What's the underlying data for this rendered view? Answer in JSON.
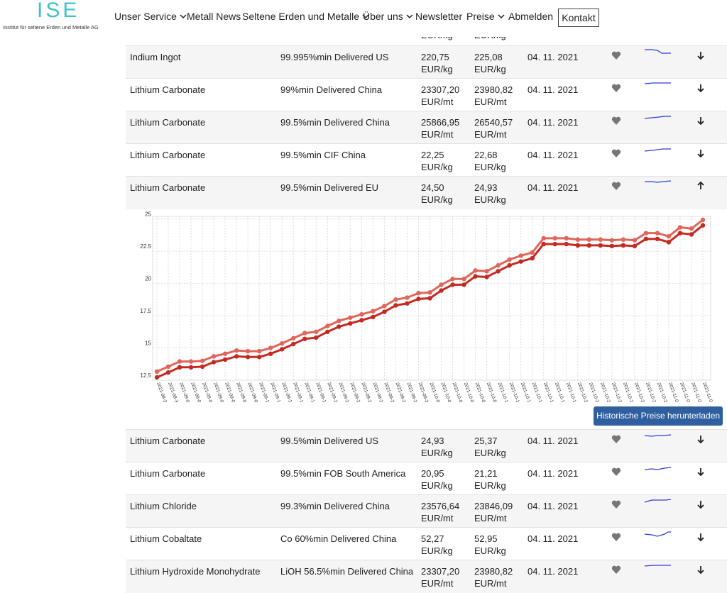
{
  "header": {
    "logo": "ISE",
    "logo_subtitle": "Institut für seltene Erden und Metalle AG",
    "nav": [
      "Unser Service",
      "Metall News",
      "Seltene Erden und Metalle",
      "Über uns",
      "Newsletter",
      "Preise",
      "Abmelden"
    ],
    "nav_dropdown": [
      true,
      false,
      true,
      true,
      false,
      true,
      false
    ],
    "contact": "Kontakt"
  },
  "partial_row": {
    "min_unit": "EUR/kg",
    "max_unit": "EUR/kg"
  },
  "table": {
    "rows_before": [
      {
        "product": "Indium Ingot",
        "spec": "99.995%min Delivered US",
        "min": "220,75",
        "min_unit": "EUR/kg",
        "max": "225,08",
        "max_unit": "EUR/kg",
        "date": "04. 11. 2021"
      },
      {
        "product": "Lithium Carbonate",
        "spec": "99%min Delivered China",
        "min": "23307,20",
        "min_unit": "EUR/mt",
        "max": "23980,82",
        "max_unit": "EUR/mt",
        "date": "04. 11. 2021"
      },
      {
        "product": "Lithium Carbonate",
        "spec": "99.5%min Delivered China",
        "min": "25866,95",
        "min_unit": "EUR/mt",
        "max": "26540,57",
        "max_unit": "EUR/mt",
        "date": "04. 11. 2021"
      },
      {
        "product": "Lithium Carbonate",
        "spec": "99.5%min CIF China",
        "min": "22,25",
        "min_unit": "EUR/kg",
        "max": "22,68",
        "max_unit": "EUR/kg",
        "date": "04. 11. 2021"
      },
      {
        "product": "Lithium Carbonate",
        "spec": "99.5%min Delivered EU",
        "min": "24,50",
        "min_unit": "EUR/kg",
        "max": "24,93",
        "max_unit": "EUR/kg",
        "date": "04. 11. 2021"
      }
    ],
    "rows_after": [
      {
        "product": "Lithium Carbonate",
        "spec": "99.5%min Delivered US",
        "min": "24,93",
        "min_unit": "EUR/kg",
        "max": "25,37",
        "max_unit": "EUR/kg",
        "date": "04. 11. 2021"
      },
      {
        "product": "Lithium Carbonate",
        "spec": "99.5%min FOB South America",
        "min": "20,95",
        "min_unit": "EUR/kg",
        "max": "21,21",
        "max_unit": "EUR/kg",
        "date": "04. 11. 2021"
      },
      {
        "product": "Lithium Chloride",
        "spec": "99.3%min Delivered China",
        "min": "23576,64",
        "min_unit": "EUR/mt",
        "max": "23846,09",
        "max_unit": "EUR/mt",
        "date": "04. 11. 2021"
      },
      {
        "product": "Lithium Cobaltate",
        "spec": "Co 60%min Delivered China",
        "min": "52,27",
        "min_unit": "EUR/kg",
        "max": "52,95",
        "max_unit": "EUR/kg",
        "date": "04. 11. 2021"
      },
      {
        "product": "Lithium Hydroxide Monohydrate",
        "spec": "LiOH 56.5%min Delivered China",
        "min": "23307,20",
        "min_unit": "EUR/mt",
        "max": "23980,82",
        "max_unit": "EUR/mt",
        "date": "04. 11. 2021"
      }
    ]
  },
  "download_button": "Historische Preise herunterladen",
  "chart_data": {
    "type": "line",
    "x": [
      "2021-08-30",
      "2021-08-31",
      "2021-09-01",
      "2021-09-02",
      "2021-09-03",
      "2021-09-06",
      "2021-09-07",
      "2021-09-08",
      "2021-09-09",
      "2021-09-10",
      "2021-09-13",
      "2021-09-14",
      "2021-09-15",
      "2021-09-16",
      "2021-09-17",
      "2021-09-20",
      "2021-09-21",
      "2021-09-22",
      "2021-09-23",
      "2021-09-24",
      "2021-09-27",
      "2021-09-28",
      "2021-09-29",
      "2021-09-30",
      "2021-10-01",
      "2021-10-04",
      "2021-10-05",
      "2021-10-06",
      "2021-10-07",
      "2021-10-08",
      "2021-10-11",
      "2021-10-12",
      "2021-10-13",
      "2021-10-14",
      "2021-10-15",
      "2021-10-18",
      "2021-10-19",
      "2021-10-20",
      "2021-10-21",
      "2021-10-22",
      "2021-10-25",
      "2021-10-26",
      "2021-10-27",
      "2021-10-28",
      "2021-10-29",
      "2021-11-01",
      "2021-11-02",
      "2021-11-03",
      "2021-11-04"
    ],
    "series": [
      {
        "color": "#e0655a",
        "values": [
          13.17,
          13.55,
          13.95,
          13.95,
          14.0,
          14.35,
          14.55,
          14.8,
          14.75,
          14.75,
          15.0,
          15.35,
          15.75,
          16.15,
          16.25,
          16.7,
          17.1,
          17.35,
          17.6,
          17.85,
          18.25,
          18.75,
          18.9,
          19.25,
          19.3,
          19.9,
          20.35,
          20.35,
          21.0,
          20.95,
          21.4,
          21.85,
          22.15,
          22.4,
          23.5,
          23.5,
          23.5,
          23.4,
          23.4,
          23.4,
          23.35,
          23.4,
          23.35,
          23.9,
          23.9,
          23.65,
          24.35,
          24.25,
          24.93
        ]
      },
      {
        "color": "#c42a20",
        "values": [
          12.72,
          13.1,
          13.5,
          13.5,
          13.55,
          13.9,
          14.1,
          14.35,
          14.3,
          14.3,
          14.55,
          14.9,
          15.3,
          15.7,
          15.8,
          16.25,
          16.65,
          16.9,
          17.15,
          17.4,
          17.8,
          18.3,
          18.45,
          18.8,
          18.85,
          19.45,
          19.9,
          19.9,
          20.55,
          20.5,
          20.95,
          21.4,
          21.7,
          21.95,
          23.05,
          23.05,
          23.05,
          22.95,
          22.95,
          22.95,
          22.9,
          22.95,
          22.9,
          23.45,
          23.45,
          23.2,
          23.9,
          23.8,
          24.5
        ]
      }
    ],
    "ylim": [
      12.5,
      25.2
    ],
    "yticks": [
      12.5,
      15,
      17.5,
      20,
      22.5,
      25
    ],
    "grid": true
  }
}
